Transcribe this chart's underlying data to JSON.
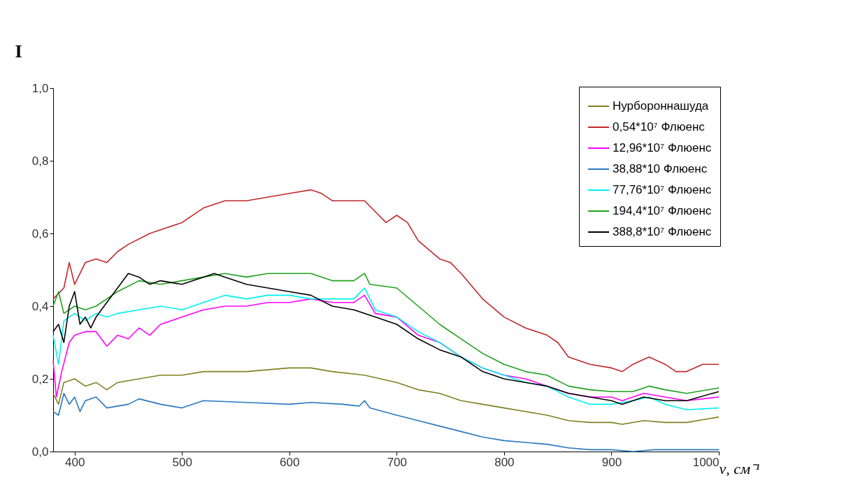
{
  "chart_data": {
    "type": "line",
    "ylabel": "I",
    "xlabel": "ν, см⁻¹",
    "xlim": [
      380,
      1000
    ],
    "xticks": [
      400,
      500,
      600,
      700,
      800,
      900,
      1000
    ],
    "ylim": [
      0,
      1
    ],
    "yticks": [
      {
        "value": 0,
        "label": "0,0"
      },
      {
        "value": 0.2,
        "label": "0,2"
      },
      {
        "value": 0.4,
        "label": "0,4"
      },
      {
        "value": 0.6,
        "label": "0,6"
      },
      {
        "value": 0.8,
        "label": "0,8"
      },
      {
        "value": 1,
        "label": "1,0"
      }
    ],
    "grid": false,
    "legend": "top right",
    "line_style": "solid",
    "marker": "none",
    "series": [
      {
        "name": "Нурбороннашуда",
        "color": "#808020",
        "x": [
          380,
          385,
          390,
          400,
          410,
          420,
          430,
          440,
          460,
          480,
          500,
          520,
          540,
          560,
          600,
          620,
          640,
          670,
          700,
          720,
          740,
          760,
          780,
          800,
          820,
          840,
          860,
          880,
          900,
          910,
          930,
          950,
          970,
          1000
        ],
        "values": [
          0.16,
          0.13,
          0.19,
          0.2,
          0.18,
          0.19,
          0.17,
          0.19,
          0.2,
          0.21,
          0.21,
          0.22,
          0.22,
          0.22,
          0.23,
          0.23,
          0.22,
          0.21,
          0.19,
          0.17,
          0.16,
          0.14,
          0.13,
          0.12,
          0.11,
          0.1,
          0.085,
          0.08,
          0.08,
          0.075,
          0.085,
          0.08,
          0.08,
          0.095
        ]
      },
      {
        "name": "0,54*10⁷ Флюенс",
        "color": "#c0282a",
        "x": [
          380,
          390,
          395,
          400,
          410,
          420,
          430,
          440,
          450,
          470,
          480,
          500,
          520,
          540,
          560,
          580,
          600,
          620,
          630,
          640,
          660,
          670,
          680,
          690,
          700,
          710,
          720,
          740,
          750,
          760,
          780,
          800,
          820,
          840,
          850,
          860,
          880,
          900,
          910,
          920,
          935,
          950,
          960,
          970,
          985,
          1000
        ],
        "values": [
          0.42,
          0.45,
          0.52,
          0.46,
          0.52,
          0.53,
          0.52,
          0.55,
          0.57,
          0.6,
          0.61,
          0.63,
          0.67,
          0.69,
          0.69,
          0.7,
          0.71,
          0.72,
          0.71,
          0.69,
          0.69,
          0.69,
          0.66,
          0.63,
          0.65,
          0.63,
          0.58,
          0.53,
          0.52,
          0.49,
          0.42,
          0.37,
          0.34,
          0.32,
          0.3,
          0.26,
          0.24,
          0.23,
          0.22,
          0.24,
          0.26,
          0.24,
          0.22,
          0.22,
          0.24,
          0.24
        ]
      },
      {
        "name": "12,96*10⁷ Флюенс",
        "color": "#ff00ff",
        "x": [
          380,
          383,
          388,
          395,
          400,
          410,
          420,
          430,
          440,
          450,
          460,
          470,
          480,
          500,
          520,
          540,
          560,
          580,
          600,
          620,
          640,
          660,
          670,
          680,
          700,
          720,
          740,
          760,
          780,
          800,
          820,
          840,
          860,
          880,
          900,
          910,
          930,
          950,
          970,
          1000
        ],
        "values": [
          0.25,
          0.15,
          0.22,
          0.3,
          0.32,
          0.33,
          0.33,
          0.29,
          0.32,
          0.31,
          0.34,
          0.32,
          0.35,
          0.37,
          0.39,
          0.4,
          0.4,
          0.41,
          0.41,
          0.42,
          0.41,
          0.41,
          0.43,
          0.38,
          0.37,
          0.32,
          0.3,
          0.26,
          0.23,
          0.21,
          0.2,
          0.18,
          0.16,
          0.15,
          0.15,
          0.14,
          0.16,
          0.15,
          0.14,
          0.15
        ]
      },
      {
        "name": "38,88*10 Флюенс",
        "color": "#2878c0",
        "x": [
          380,
          385,
          390,
          395,
          400,
          405,
          410,
          420,
          430,
          450,
          460,
          480,
          500,
          520,
          560,
          600,
          620,
          650,
          665,
          670,
          675,
          700,
          720,
          740,
          760,
          780,
          800,
          820,
          840,
          860,
          880,
          900,
          920,
          940,
          960,
          1000
        ],
        "values": [
          0.11,
          0.1,
          0.16,
          0.13,
          0.15,
          0.11,
          0.14,
          0.15,
          0.12,
          0.13,
          0.145,
          0.13,
          0.12,
          0.14,
          0.135,
          0.13,
          0.135,
          0.13,
          0.125,
          0.14,
          0.12,
          0.1,
          0.085,
          0.07,
          0.055,
          0.04,
          0.03,
          0.025,
          0.02,
          0.01,
          0.005,
          0.005,
          0.0,
          0.005,
          0.005,
          0.005
        ]
      },
      {
        "name": "77,76*10⁷ Флюенс",
        "color": "#00f0f0",
        "x": [
          380,
          385,
          390,
          400,
          410,
          420,
          430,
          440,
          460,
          480,
          500,
          520,
          540,
          560,
          580,
          600,
          620,
          640,
          660,
          670,
          680,
          700,
          720,
          740,
          760,
          780,
          800,
          820,
          840,
          860,
          880,
          900,
          920,
          935,
          950,
          970,
          1000
        ],
        "values": [
          0.32,
          0.24,
          0.36,
          0.38,
          0.36,
          0.38,
          0.37,
          0.38,
          0.39,
          0.4,
          0.39,
          0.41,
          0.43,
          0.42,
          0.43,
          0.43,
          0.42,
          0.42,
          0.42,
          0.45,
          0.39,
          0.37,
          0.33,
          0.3,
          0.26,
          0.23,
          0.21,
          0.19,
          0.18,
          0.15,
          0.13,
          0.13,
          0.14,
          0.15,
          0.13,
          0.115,
          0.12
        ]
      },
      {
        "name": "194,4*10⁷ Флюенс",
        "color": "#20a020",
        "x": [
          380,
          385,
          390,
          400,
          410,
          420,
          440,
          460,
          480,
          500,
          520,
          540,
          560,
          580,
          600,
          620,
          640,
          660,
          670,
          675,
          700,
          720,
          740,
          760,
          780,
          800,
          820,
          840,
          860,
          880,
          900,
          920,
          935,
          950,
          970,
          1000
        ],
        "values": [
          0.4,
          0.44,
          0.38,
          0.4,
          0.39,
          0.4,
          0.44,
          0.47,
          0.46,
          0.47,
          0.48,
          0.49,
          0.48,
          0.49,
          0.49,
          0.49,
          0.47,
          0.47,
          0.49,
          0.46,
          0.45,
          0.4,
          0.35,
          0.31,
          0.27,
          0.24,
          0.22,
          0.21,
          0.18,
          0.17,
          0.165,
          0.165,
          0.18,
          0.17,
          0.16,
          0.175
        ]
      },
      {
        "name": "388,8*10⁷ Флюенс",
        "color": "#000000",
        "x": [
          380,
          385,
          390,
          395,
          400,
          405,
          410,
          415,
          420,
          430,
          440,
          450,
          460,
          470,
          480,
          500,
          520,
          530,
          540,
          560,
          580,
          600,
          620,
          640,
          660,
          680,
          700,
          720,
          740,
          760,
          780,
          800,
          820,
          840,
          860,
          880,
          900,
          910,
          930,
          950,
          970,
          1000
        ],
        "values": [
          0.33,
          0.35,
          0.3,
          0.4,
          0.44,
          0.35,
          0.37,
          0.34,
          0.37,
          0.41,
          0.45,
          0.49,
          0.48,
          0.46,
          0.47,
          0.46,
          0.48,
          0.49,
          0.48,
          0.46,
          0.45,
          0.44,
          0.43,
          0.4,
          0.39,
          0.37,
          0.35,
          0.31,
          0.28,
          0.26,
          0.22,
          0.2,
          0.19,
          0.18,
          0.16,
          0.15,
          0.14,
          0.13,
          0.15,
          0.14,
          0.14,
          0.165
        ]
      }
    ]
  }
}
